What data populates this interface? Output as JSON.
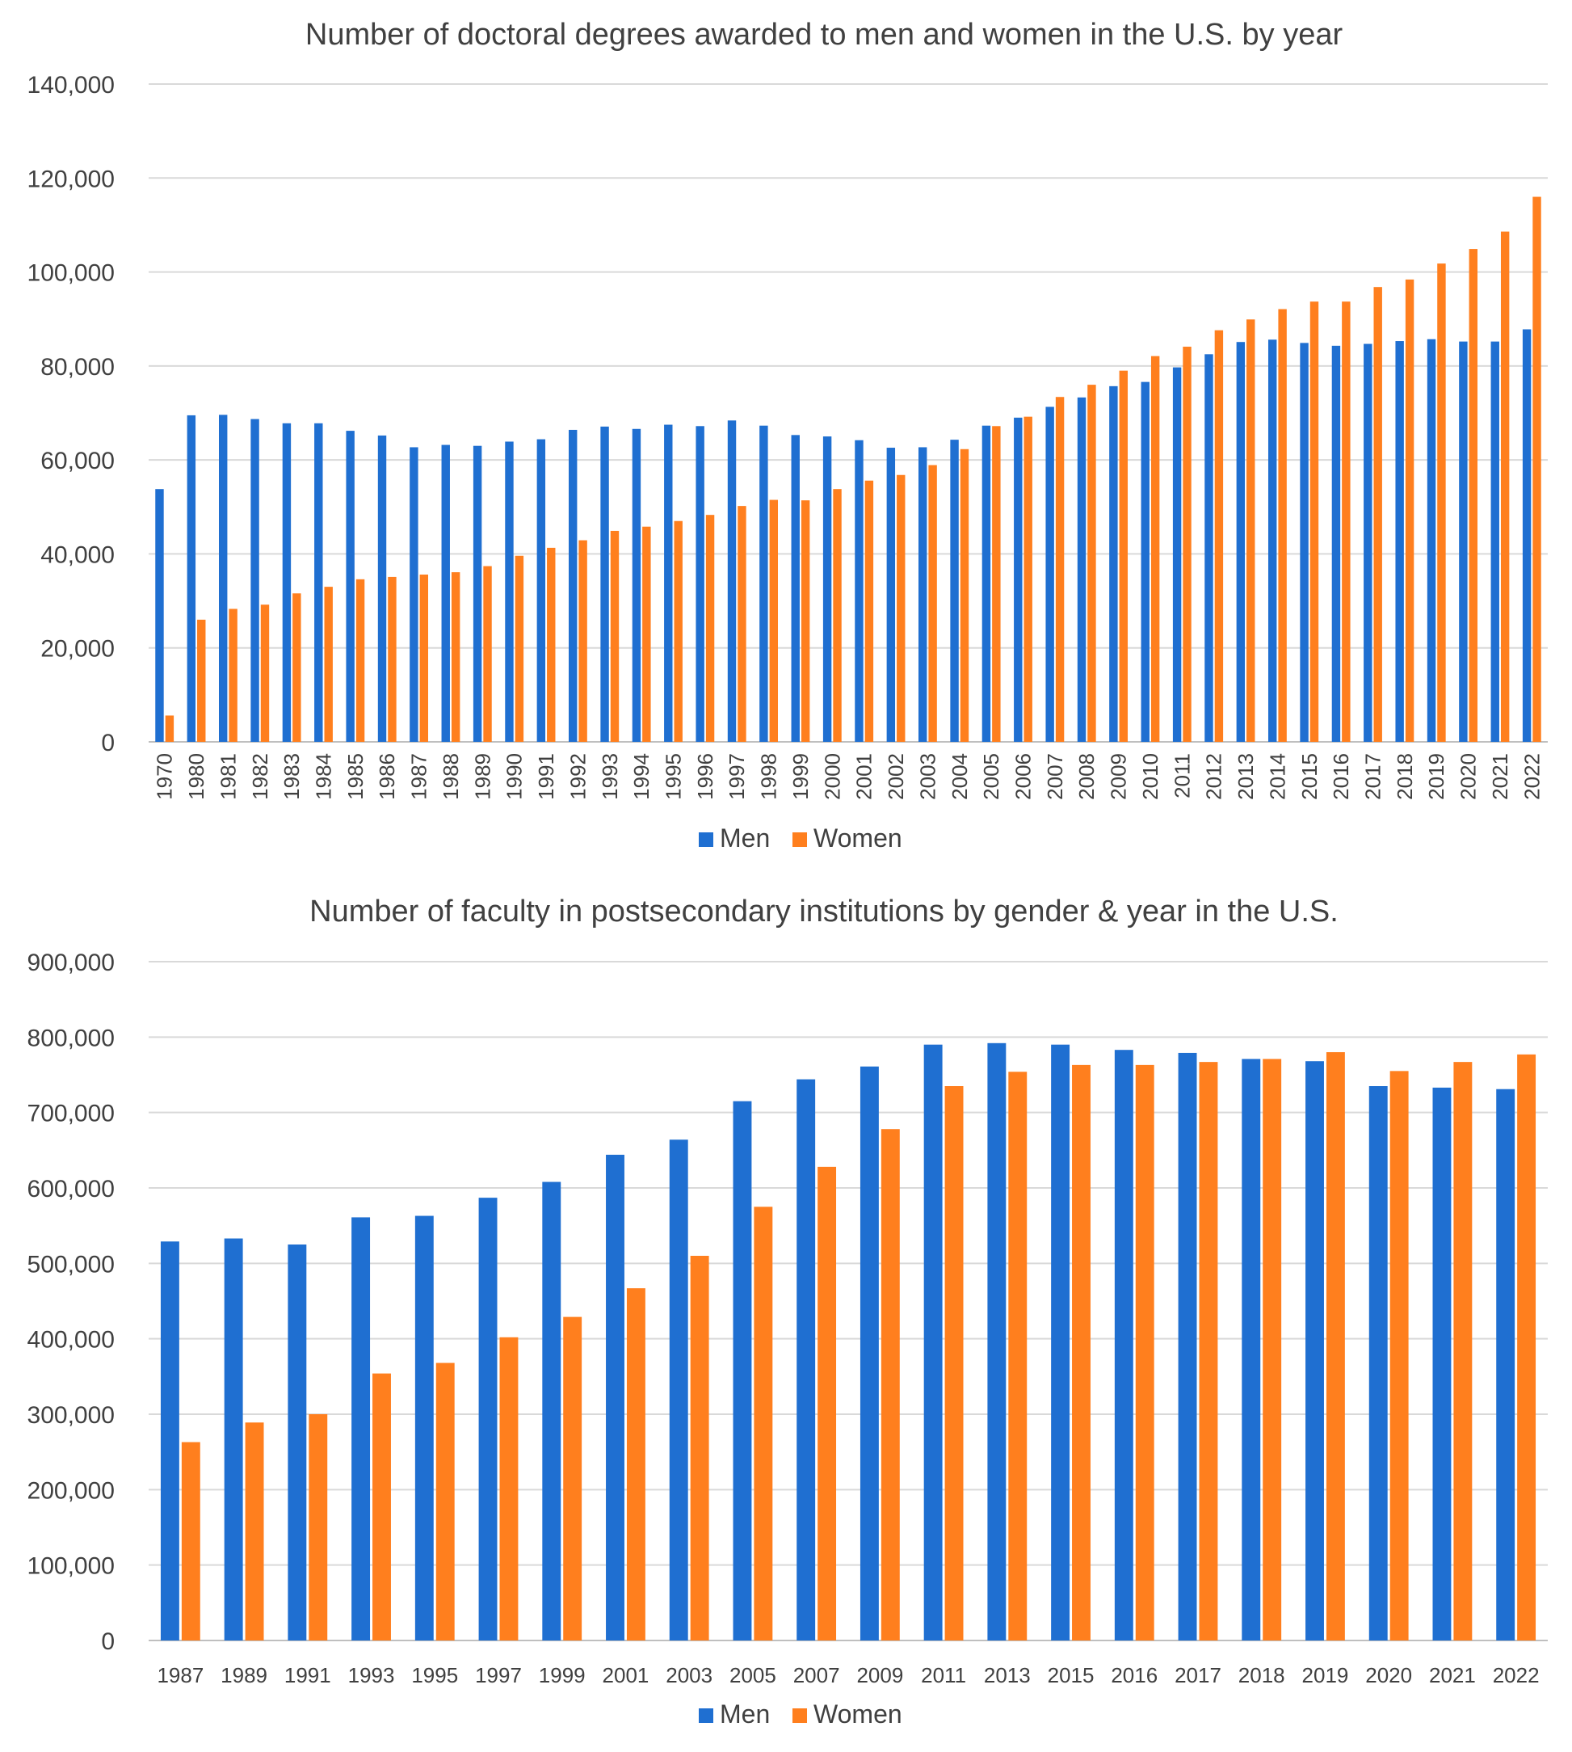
{
  "colors": {
    "men": "#1f6fd1",
    "women": "#ff7f1e"
  },
  "chart_data": [
    {
      "type": "bar",
      "title": "Number of doctoral degrees awarded to men and women in the U.S. by year",
      "xlabel": "",
      "ylabel": "",
      "ylim": [
        0,
        140000
      ],
      "yticks": [
        "0",
        "20,000",
        "40,000",
        "60,000",
        "80,000",
        "100,000",
        "120,000",
        "140,000"
      ],
      "ytick_values": [
        0,
        20000,
        40000,
        60000,
        80000,
        100000,
        120000,
        140000
      ],
      "x_rotated": true,
      "legend_position": "bottom-center",
      "grid": true,
      "categories": [
        "1970",
        "1980",
        "1981",
        "1982",
        "1983",
        "1984",
        "1985",
        "1986",
        "1987",
        "1988",
        "1989",
        "1990",
        "1991",
        "1992",
        "1993",
        "1994",
        "1995",
        "1996",
        "1997",
        "1998",
        "1999",
        "2000",
        "2001",
        "2002",
        "2003",
        "2004",
        "2005",
        "2006",
        "2007",
        "2008",
        "2009",
        "2010",
        "2011",
        "2012",
        "2013",
        "2014",
        "2015",
        "2016",
        "2017",
        "2018",
        "2019",
        "2020",
        "2021",
        "2022"
      ],
      "series": [
        {
          "name": "Men",
          "values": [
            53800,
            69500,
            69600,
            68700,
            67800,
            67800,
            66200,
            65200,
            62700,
            63200,
            63000,
            63900,
            64400,
            66400,
            67100,
            66600,
            67500,
            67200,
            68400,
            67300,
            65300,
            65000,
            64200,
            62600,
            62700,
            64300,
            67300,
            69000,
            71300,
            73300,
            75700,
            76600,
            79700,
            82500,
            85100,
            85600,
            84900,
            84300,
            84700,
            85300,
            85700,
            85200,
            85200,
            87800
          ]
        },
        {
          "name": "Women",
          "values": [
            5600,
            26000,
            28300,
            29200,
            31600,
            33000,
            34600,
            35100,
            35600,
            36100,
            37400,
            39600,
            41300,
            42900,
            44900,
            45800,
            47000,
            48300,
            50200,
            51500,
            51400,
            53800,
            55600,
            56800,
            58900,
            62300,
            67200,
            69200,
            73400,
            76000,
            79000,
            82100,
            84100,
            87600,
            89900,
            92100,
            93700,
            93700,
            96800,
            98400,
            101800,
            104900,
            108600,
            116000
          ]
        }
      ]
    },
    {
      "type": "bar",
      "title": "Number of faculty in postsecondary institutions by gender & year in the U.S.",
      "xlabel": "",
      "ylabel": "",
      "ylim": [
        0,
        900000
      ],
      "yticks": [
        "0",
        "100,000",
        "200,000",
        "300,000",
        "400,000",
        "500,000",
        "600,000",
        "700,000",
        "800,000",
        "900,000"
      ],
      "ytick_values": [
        0,
        100000,
        200000,
        300000,
        400000,
        500000,
        600000,
        700000,
        800000,
        900000
      ],
      "x_rotated": false,
      "legend_position": "bottom-center",
      "grid": true,
      "categories": [
        "1987",
        "1989",
        "1991",
        "1993",
        "1995",
        "1997",
        "1999",
        "2001",
        "2003",
        "2005",
        "2007",
        "2009",
        "2011",
        "2013",
        "2015",
        "2016",
        "2017",
        "2018",
        "2019",
        "2020",
        "2021",
        "2022"
      ],
      "series": [
        {
          "name": "Men",
          "values": [
            529000,
            533000,
            525000,
            561000,
            563000,
            587000,
            608000,
            644000,
            664000,
            715000,
            744000,
            761000,
            790000,
            792000,
            790000,
            783000,
            779000,
            771000,
            768000,
            735000,
            733000,
            731000
          ]
        },
        {
          "name": "Women",
          "values": [
            263000,
            289000,
            300000,
            354000,
            368000,
            402000,
            429000,
            467000,
            510000,
            575000,
            628000,
            678000,
            735000,
            754000,
            763000,
            763000,
            767000,
            771000,
            780000,
            755000,
            767000,
            777000
          ]
        }
      ]
    }
  ]
}
